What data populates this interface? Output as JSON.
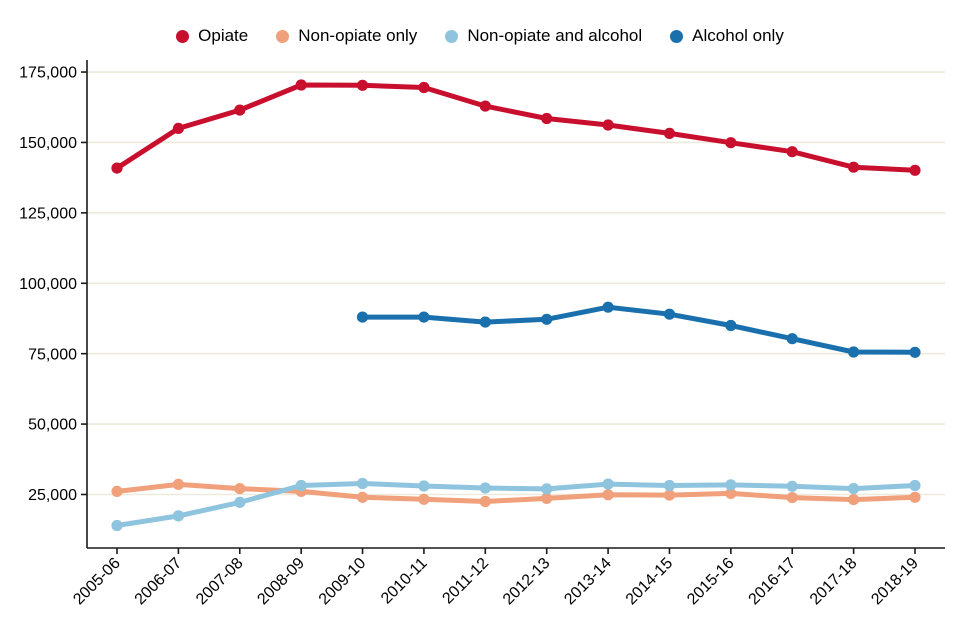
{
  "chart_data": {
    "type": "line",
    "title": "",
    "xlabel": "",
    "ylabel": "",
    "categories": [
      "2005-06",
      "2006-07",
      "2007-08",
      "2008-09",
      "2009-10",
      "2010-11",
      "2011-12",
      "2012-13",
      "2013-14",
      "2014-15",
      "2015-16",
      "2016-17",
      "2017-18",
      "2018-19"
    ],
    "series": [
      {
        "name": "Opiate",
        "color": "#c8102e",
        "values": [
          140900,
          155000,
          161500,
          170400,
          170300,
          169500,
          162900,
          158500,
          156200,
          153200,
          149900,
          146700,
          141200,
          140100
        ]
      },
      {
        "name": "Non-opiate only",
        "color": "#f0a07a",
        "values": [
          26100,
          28600,
          27100,
          26100,
          24000,
          23300,
          22500,
          23600,
          24900,
          24800,
          25400,
          23900,
          23200,
          24000
        ]
      },
      {
        "name": "Non-opiate and alcohol",
        "color": "#8ec4de",
        "values": [
          14000,
          17400,
          22200,
          28200,
          28900,
          28000,
          27300,
          27000,
          28700,
          28200,
          28400,
          27900,
          27100,
          28200
        ]
      },
      {
        "name": "Alcohol only",
        "color": "#1a6fad",
        "values": [
          null,
          null,
          null,
          null,
          88000,
          88000,
          86200,
          87200,
          91500,
          89000,
          85000,
          80300,
          75600,
          75500
        ]
      }
    ],
    "yticks": [
      25000,
      50000,
      75000,
      100000,
      125000,
      150000,
      175000
    ],
    "ylim": [
      6000,
      177500
    ],
    "grid": "horizontal",
    "grid_color": "#eee9da",
    "axis_color": "#1a1a1a",
    "background": "#ffffff",
    "legend_position": "top",
    "x_label_rotation": -45
  }
}
